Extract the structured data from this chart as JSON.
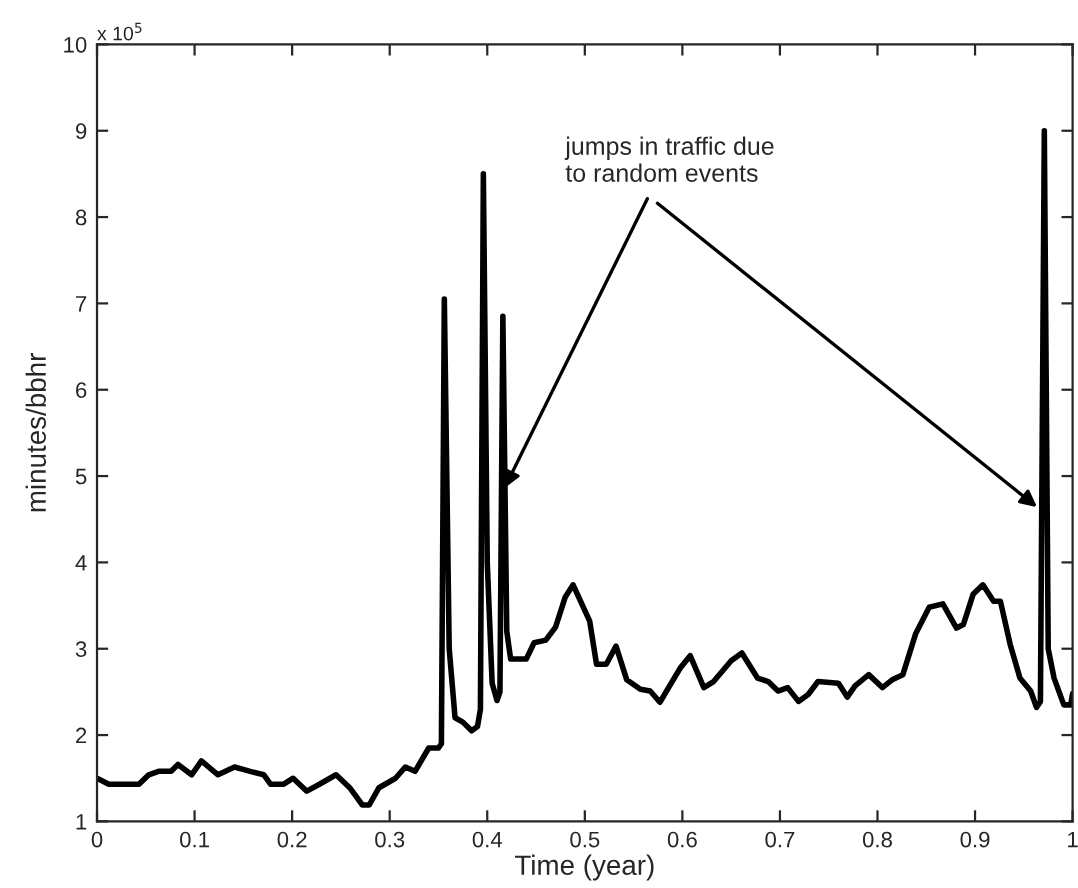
{
  "chart_data": {
    "type": "line",
    "xlabel": "Time (year)",
    "ylabel": "minutes/bbhr",
    "xlim": [
      0,
      1
    ],
    "xticks": [
      0,
      0.1,
      0.2,
      0.3,
      0.4,
      0.5,
      0.6,
      0.7,
      0.8,
      0.9,
      1
    ],
    "ylim": [
      1,
      10
    ],
    "yticks": [
      1,
      2,
      3,
      4,
      5,
      6,
      7,
      8,
      9,
      10
    ],
    "grid": false,
    "legend": false,
    "annotations": [
      "x 10$^{5}$",
      {
        "text": "jumps in traffic due\nto random events",
        "x": 0.415,
        "y": 4.8
      }
    ],
    "series": [
      {
        "color": "#000000",
        "x": [
          0,
          0.012,
          0.043,
          0.053,
          0.063,
          0.076,
          0.083,
          0.097,
          0.107,
          0.124,
          0.141,
          0.157,
          0.171,
          0.178,
          0.191,
          0.201,
          0.215,
          0.228,
          0.245,
          0.259,
          0.272,
          0.279,
          0.289,
          0.306,
          0.316,
          0.326,
          0.34,
          0.35,
          0.353,
          0.356,
          0.361,
          0.367,
          0.375,
          0.384,
          0.39,
          0.393,
          0.396,
          0.4,
          0.405,
          0.41,
          0.413,
          0.416,
          0.42,
          0.424,
          0.44,
          0.448,
          0.46,
          0.47,
          0.48,
          0.488,
          0.505,
          0.512,
          0.522,
          0.532,
          0.543,
          0.557,
          0.567,
          0.577,
          0.588,
          0.598,
          0.608,
          0.622,
          0.632,
          0.65,
          0.661,
          0.677,
          0.688,
          0.698,
          0.708,
          0.719,
          0.729,
          0.739,
          0.76,
          0.769,
          0.777,
          0.791,
          0.805,
          0.815,
          0.826,
          0.839,
          0.853,
          0.867,
          0.881,
          0.888,
          0.898,
          0.908,
          0.919,
          0.926,
          0.936,
          0.946,
          0.957,
          0.963,
          0.967,
          0.971,
          0.975,
          0.981,
          0.991,
          0.998,
          1.0
        ],
        "values": [
          1.5,
          1.43,
          1.43,
          1.54,
          1.58,
          1.58,
          1.66,
          1.54,
          1.7,
          1.54,
          1.63,
          1.58,
          1.54,
          1.43,
          1.43,
          1.5,
          1.35,
          1.43,
          1.54,
          1.39,
          1.19,
          1.19,
          1.39,
          1.5,
          1.63,
          1.58,
          1.85,
          1.85,
          1.9,
          7.05,
          3.0,
          2.2,
          2.15,
          2.05,
          2.1,
          2.3,
          8.5,
          4.0,
          2.6,
          2.4,
          2.5,
          6.85,
          3.2,
          2.88,
          2.88,
          3.07,
          3.1,
          3.25,
          3.6,
          3.74,
          3.32,
          2.82,
          2.82,
          3.03,
          2.64,
          2.53,
          2.51,
          2.38,
          2.59,
          2.78,
          2.92,
          2.55,
          2.62,
          2.86,
          2.95,
          2.66,
          2.62,
          2.51,
          2.55,
          2.39,
          2.47,
          2.62,
          2.6,
          2.44,
          2.57,
          2.7,
          2.55,
          2.64,
          2.7,
          3.17,
          3.48,
          3.52,
          3.24,
          3.28,
          3.63,
          3.74,
          3.55,
          3.55,
          3.05,
          2.66,
          2.51,
          2.32,
          2.39,
          9.0,
          3.0,
          2.66,
          2.35,
          2.35,
          2.48
        ]
      }
    ]
  }
}
